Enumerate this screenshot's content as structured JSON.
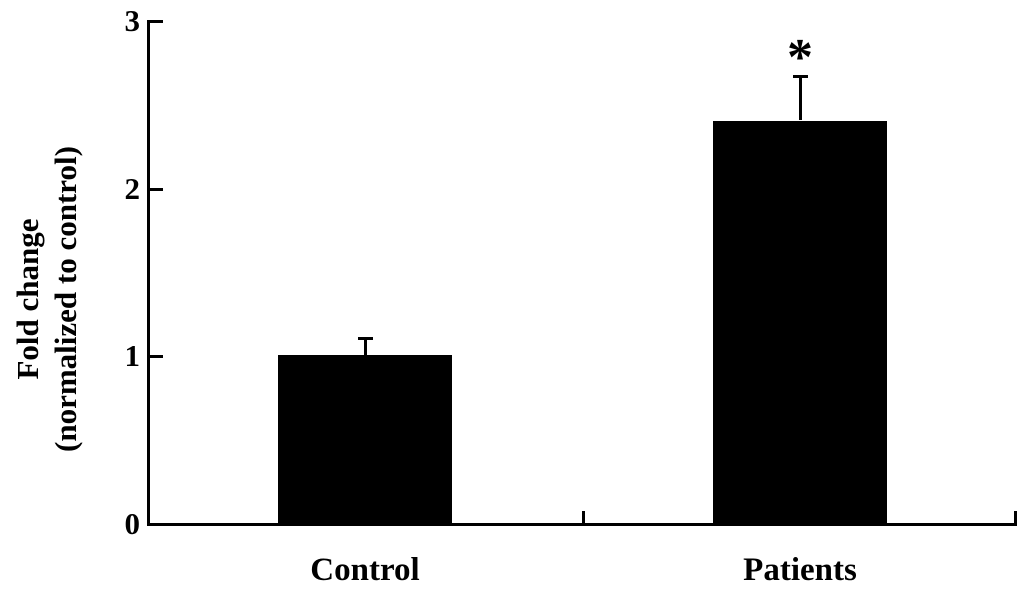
{
  "chart_data": {
    "type": "bar",
    "categories": [
      "Control",
      "Patients"
    ],
    "values": [
      1.0,
      2.4
    ],
    "errors": [
      0.11,
      0.27
    ],
    "error_direction": "upper",
    "bar_color": "#000000",
    "title": "",
    "xlabel": "",
    "ylabel_lines": [
      "Fold change",
      "(normalized to control)"
    ],
    "ylim": [
      0,
      3
    ],
    "yticks": [
      0,
      1,
      2,
      3
    ],
    "grid": false,
    "legend": false,
    "annotations": [
      {
        "category": "Patients",
        "text": "*"
      }
    ]
  },
  "colors": {
    "background": "#ffffff",
    "axis": "#000000",
    "text": "#000000"
  }
}
